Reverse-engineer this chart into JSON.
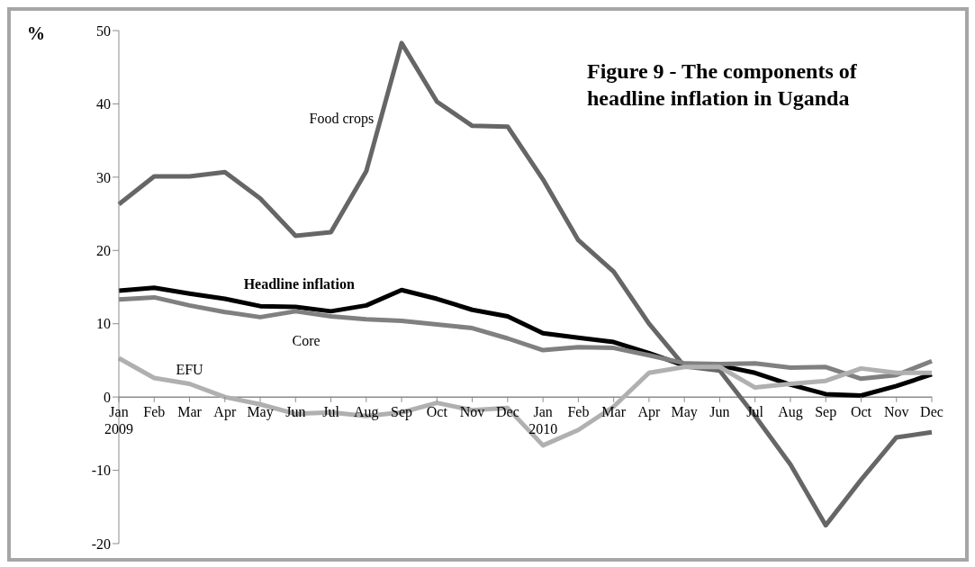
{
  "chart_data": {
    "type": "line",
    "title": "Figure 9 - The components of headline inflation in Uganda",
    "ylabel": "%",
    "categories": [
      "Jan 2009",
      "Feb",
      "Mar",
      "Apr",
      "May",
      "Jun",
      "Jul",
      "Aug",
      "Sep",
      "Oct",
      "Nov",
      "Dec",
      "Jan 2010",
      "Feb",
      "Mar",
      "Apr",
      "May",
      "Jun",
      "Jul",
      "Aug",
      "Sep",
      "Oct",
      "Nov",
      "Dec"
    ],
    "series": [
      {
        "name": "Food crops",
        "color": "#666666",
        "values": [
          26.3,
          30.1,
          30.1,
          30.7,
          27.1,
          22.0,
          22.5,
          30.8,
          48.3,
          40.3,
          37.0,
          36.9,
          29.7,
          21.4,
          17.1,
          10.0,
          4.2,
          3.6,
          -2.6,
          -9.2,
          -17.5,
          -11.3,
          -5.5,
          -4.8
        ]
      },
      {
        "name": "Headline inflation",
        "color": "#000000",
        "values": [
          14.5,
          14.9,
          14.1,
          13.4,
          12.4,
          12.3,
          11.7,
          12.5,
          14.6,
          13.4,
          11.9,
          11.0,
          8.7,
          8.1,
          7.5,
          6.0,
          4.3,
          4.3,
          3.3,
          1.7,
          0.4,
          0.2,
          1.5,
          3.1
        ]
      },
      {
        "name": "Core",
        "color": "#808080",
        "values": [
          13.3,
          13.6,
          12.5,
          11.6,
          10.9,
          11.7,
          11.0,
          10.6,
          10.4,
          9.9,
          9.4,
          8.0,
          6.4,
          6.8,
          6.7,
          5.7,
          4.6,
          4.5,
          4.6,
          4.0,
          4.1,
          2.5,
          3.0,
          4.9
        ]
      },
      {
        "name": "EFU",
        "color": "#b0b0b0",
        "values": [
          5.3,
          2.6,
          1.8,
          0.0,
          -1.0,
          -2.3,
          -2.1,
          -2.6,
          -2.1,
          -0.8,
          -1.8,
          -1.5,
          -6.6,
          -4.5,
          -1.3,
          3.3,
          4.1,
          4.1,
          1.3,
          1.8,
          2.2,
          3.9,
          3.3,
          3.3
        ]
      }
    ],
    "ylim": [
      -20,
      50
    ],
    "yticks": [
      -20,
      -10,
      0,
      10,
      20,
      30,
      40,
      50
    ],
    "grid": false,
    "marker": "none",
    "line_style": "solid"
  }
}
